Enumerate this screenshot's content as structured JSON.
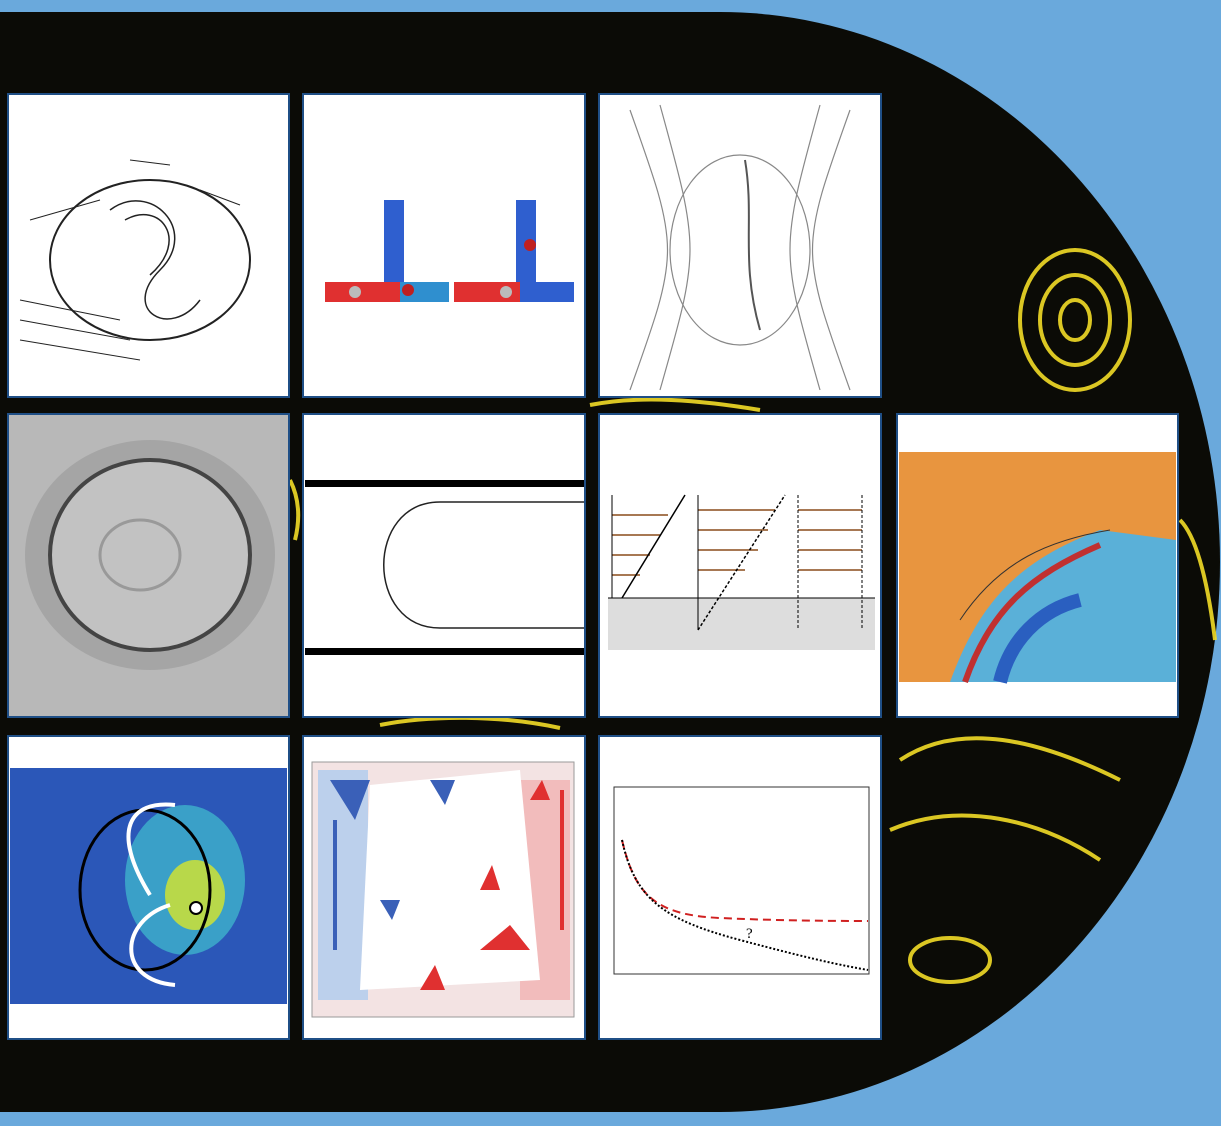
{
  "annotations": [
    "?"
  ]
}
